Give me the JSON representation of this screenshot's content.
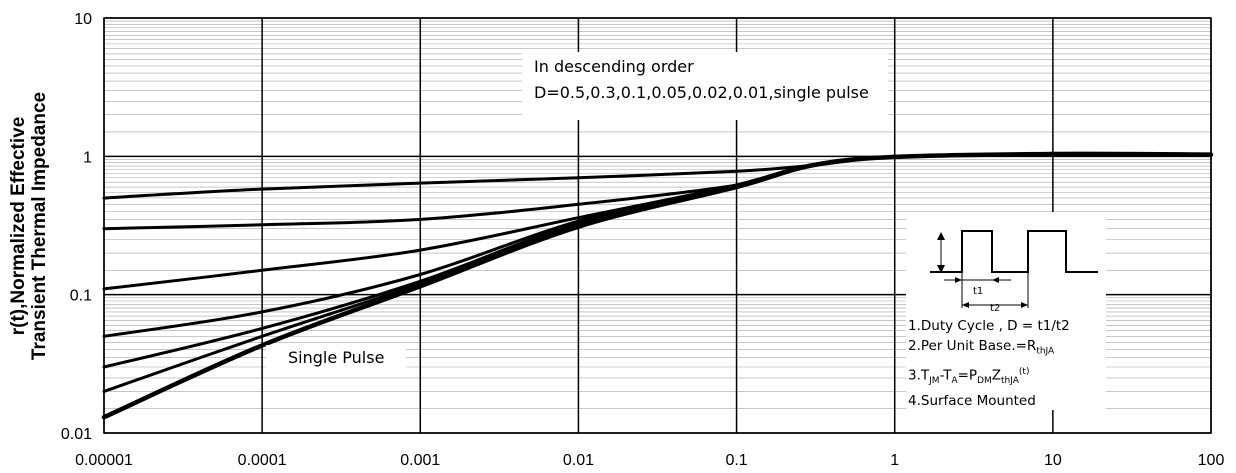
{
  "chart_data": {
    "type": "line",
    "title": "",
    "xlabel": "",
    "ylabel_line1": "r(t),Normalized Effective",
    "ylabel_line2": "Transient Thermal Impedance",
    "x_scale": "log",
    "y_scale": "log",
    "xlim": [
      1e-05,
      100
    ],
    "ylim": [
      0.01,
      10
    ],
    "x_ticks": [
      "0.00001",
      "0.0001",
      "0.001",
      "0.01",
      "0.1",
      "1",
      "10",
      "100"
    ],
    "y_ticks": [
      "10",
      "1",
      "0.1",
      "0.01"
    ],
    "grid": true,
    "series": [
      {
        "x": [
          1e-05,
          0.0001,
          0.001,
          0.01,
          0.1,
          0.3,
          1,
          10,
          100
        ],
        "y": [
          0.5,
          0.58,
          0.64,
          0.7,
          0.78,
          0.86,
          0.99,
          1.04,
          1.03
        ]
      },
      {
        "x": [
          1e-05,
          0.0001,
          0.001,
          0.01,
          0.1,
          0.3,
          1,
          10,
          100
        ],
        "y": [
          0.3,
          0.32,
          0.35,
          0.45,
          0.62,
          0.86,
          0.99,
          1.04,
          1.03
        ]
      },
      {
        "x": [
          1e-05,
          0.0001,
          0.001,
          0.01,
          0.1,
          0.3,
          1,
          10,
          100
        ],
        "y": [
          0.11,
          0.15,
          0.21,
          0.36,
          0.62,
          0.87,
          0.99,
          1.04,
          1.03
        ]
      },
      {
        "x": [
          1e-05,
          0.0001,
          0.001,
          0.01,
          0.1,
          0.3,
          1,
          10,
          100
        ],
        "y": [
          0.05,
          0.075,
          0.14,
          0.34,
          0.62,
          0.87,
          0.99,
          1.04,
          1.03
        ]
      },
      {
        "x": [
          1e-05,
          0.0001,
          0.001,
          0.01,
          0.1,
          0.3,
          1,
          10,
          100
        ],
        "y": [
          0.03,
          0.057,
          0.125,
          0.33,
          0.62,
          0.87,
          0.99,
          1.04,
          1.03
        ]
      },
      {
        "x": [
          1e-05,
          0.0001,
          0.001,
          0.01,
          0.1,
          0.3,
          1,
          10,
          100
        ],
        "y": [
          0.02,
          0.05,
          0.12,
          0.32,
          0.61,
          0.87,
          0.99,
          1.04,
          1.03
        ]
      },
      {
        "x": [
          1e-05,
          0.0001,
          0.001,
          0.01,
          0.1,
          0.3,
          1,
          10,
          100
        ],
        "y": [
          0.013,
          0.043,
          0.115,
          0.31,
          0.6,
          0.86,
          0.99,
          1.04,
          1.03
        ]
      }
    ],
    "annotations": {
      "order_line1": "In descending order",
      "order_line2": "D=0.5,0.3,0.1,0.05,0.02,0.01,single pulse",
      "single_pulse": "Single Pulse",
      "t1_label": "t1",
      "t2_label": "t2",
      "note1": "1.Duty Cycle , D = t1/t2",
      "note2_main": "2.Per Unit Base.=R",
      "note2_sub": "thJA",
      "note3_a": "3.T",
      "note3_b": "JM",
      "note3_c": "-T",
      "note3_d": "A",
      "note3_e": "=P",
      "note3_f": "DM",
      "note3_g": "Z",
      "note3_h": "thJA",
      "note3_i": "(t)",
      "note4": "4.Surface Mounted"
    },
    "colors": {
      "lines": "#000000",
      "major_grid": "#000000",
      "minor_grid": "#a6a6a6"
    }
  }
}
